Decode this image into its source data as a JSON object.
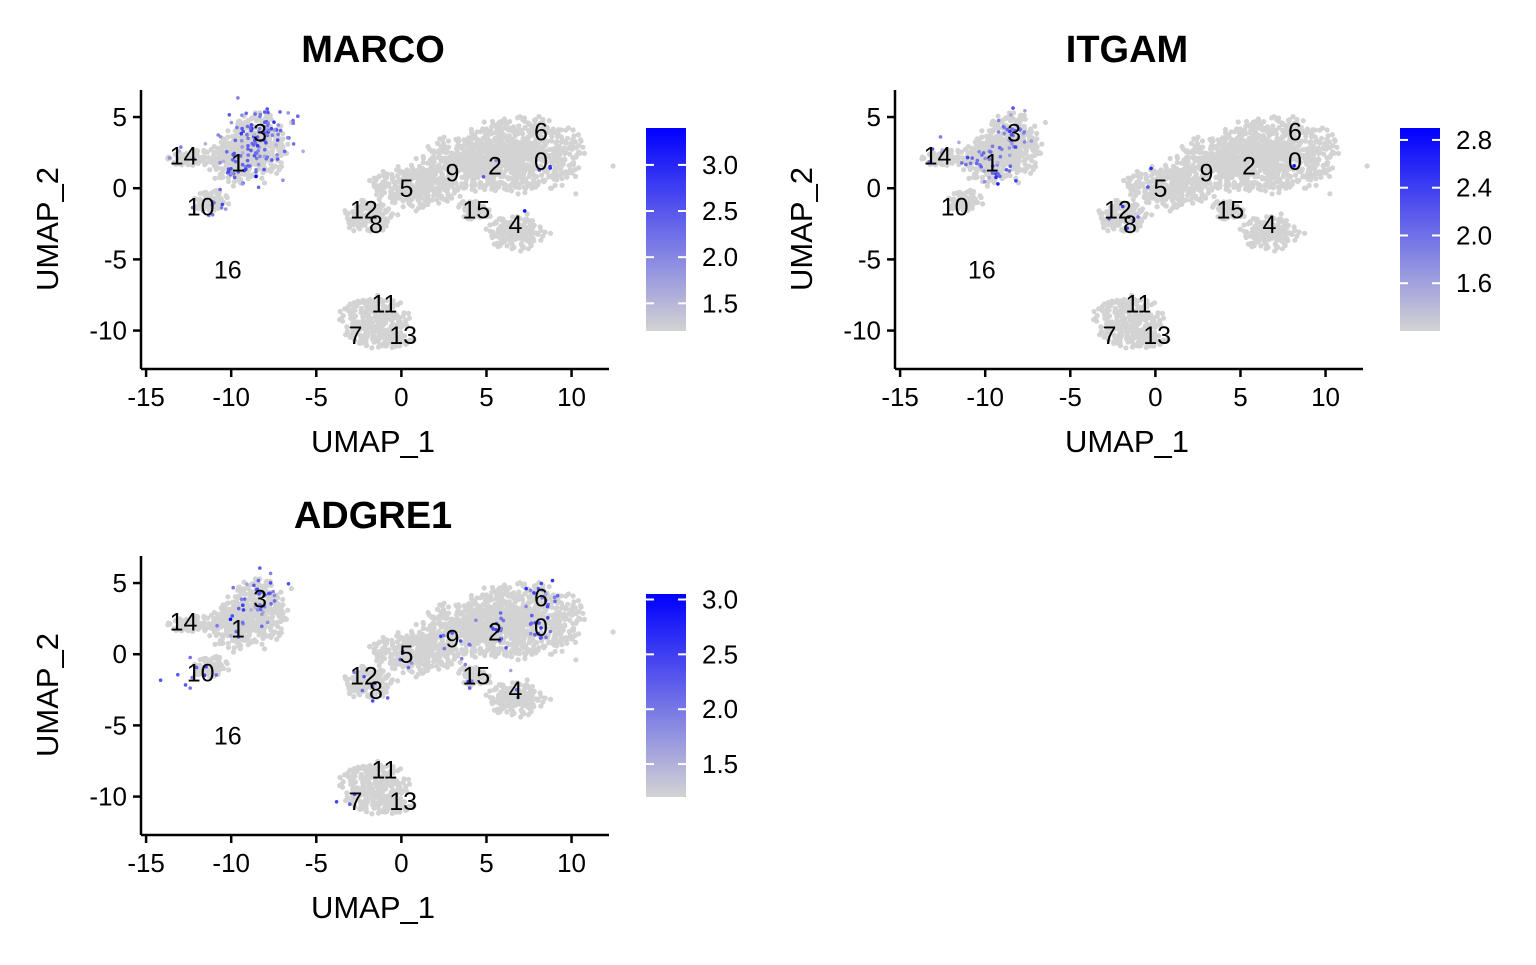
{
  "chart_data": [
    {
      "type": "scatter",
      "title": "MARCO",
      "xlabel": "UMAP_1",
      "ylabel": "UMAP_2",
      "xlim": [
        -15.3,
        12.2
      ],
      "ylim": [
        -12.7,
        6.9
      ],
      "xticks": [
        -15,
        -10,
        -5,
        0,
        5,
        10
      ],
      "yticks": [
        5,
        0,
        -5,
        -10
      ],
      "point_color_low": "#d3d3d3",
      "point_color_high": "#0000ff",
      "colorbar": {
        "min": 1.2,
        "max": 3.4,
        "ticks": [
          1.5,
          2.0,
          2.5,
          3.0
        ],
        "tick_labels": [
          "1.5",
          "2.0",
          "2.5",
          "3.0"
        ]
      },
      "cluster_labels": [
        {
          "label": "0",
          "x": 8.2,
          "y": 1.9
        },
        {
          "label": "1",
          "x": -9.6,
          "y": 1.8
        },
        {
          "label": "2",
          "x": 5.5,
          "y": 1.6
        },
        {
          "label": "3",
          "x": -8.3,
          "y": 3.9
        },
        {
          "label": "4",
          "x": 6.7,
          "y": -2.5
        },
        {
          "label": "5",
          "x": 0.3,
          "y": 0.0
        },
        {
          "label": "6",
          "x": 8.2,
          "y": 4.0
        },
        {
          "label": "7",
          "x": -2.7,
          "y": -10.3
        },
        {
          "label": "8",
          "x": -1.5,
          "y": -2.5
        },
        {
          "label": "9",
          "x": 3.0,
          "y": 1.1
        },
        {
          "label": "10",
          "x": -11.8,
          "y": -1.3
        },
        {
          "label": "11",
          "x": -1.0,
          "y": -8.1
        },
        {
          "label": "12",
          "x": -2.2,
          "y": -1.5
        },
        {
          "label": "13",
          "x": 0.1,
          "y": -10.3
        },
        {
          "label": "14",
          "x": -12.8,
          "y": 2.3
        },
        {
          "label": "15",
          "x": 4.4,
          "y": -1.5
        },
        {
          "label": "16",
          "x": -10.2,
          "y": -5.7
        }
      ],
      "expressing_clusters": [
        {
          "cluster": "3",
          "count": 85,
          "level": 0.5
        },
        {
          "cluster": "1",
          "count": 45,
          "level": 0.5
        },
        {
          "cluster": "14",
          "count": 6,
          "level": 0.35
        },
        {
          "cluster": "10",
          "count": 10,
          "level": 0.45
        },
        {
          "cluster": "0",
          "count": 3,
          "level": 0.6
        },
        {
          "cluster": "4",
          "count": 1,
          "level": 0.6
        },
        {
          "cluster": "2",
          "count": 2,
          "level": 0.6
        }
      ]
    },
    {
      "type": "scatter",
      "title": "ITGAM",
      "xlabel": "UMAP_1",
      "ylabel": "UMAP_2",
      "xlim": [
        -15.3,
        12.2
      ],
      "ylim": [
        -12.7,
        6.9
      ],
      "xticks": [
        -15,
        -10,
        -5,
        0,
        5,
        10
      ],
      "yticks": [
        5,
        0,
        -5,
        -10
      ],
      "point_color_low": "#d3d3d3",
      "point_color_high": "#0000ff",
      "colorbar": {
        "min": 1.2,
        "max": 2.9,
        "ticks": [
          1.6,
          2.0,
          2.4,
          2.8
        ],
        "tick_labels": [
          "1.6",
          "2.0",
          "2.4",
          "2.8"
        ]
      },
      "cluster_labels": [
        {
          "label": "0",
          "x": 8.2,
          "y": 1.9
        },
        {
          "label": "1",
          "x": -9.6,
          "y": 1.8
        },
        {
          "label": "2",
          "x": 5.5,
          "y": 1.6
        },
        {
          "label": "3",
          "x": -8.3,
          "y": 3.9
        },
        {
          "label": "4",
          "x": 6.7,
          "y": -2.5
        },
        {
          "label": "5",
          "x": 0.3,
          "y": 0.0
        },
        {
          "label": "6",
          "x": 8.2,
          "y": 4.0
        },
        {
          "label": "7",
          "x": -2.7,
          "y": -10.3
        },
        {
          "label": "8",
          "x": -1.5,
          "y": -2.5
        },
        {
          "label": "9",
          "x": 3.0,
          "y": 1.1
        },
        {
          "label": "10",
          "x": -11.8,
          "y": -1.3
        },
        {
          "label": "11",
          "x": -1.0,
          "y": -8.1
        },
        {
          "label": "12",
          "x": -2.2,
          "y": -1.5
        },
        {
          "label": "13",
          "x": 0.1,
          "y": -10.3
        },
        {
          "label": "14",
          "x": -12.8,
          "y": 2.3
        },
        {
          "label": "15",
          "x": 4.4,
          "y": -1.5
        },
        {
          "label": "16",
          "x": -10.2,
          "y": -5.7
        }
      ],
      "expressing_clusters": [
        {
          "cluster": "1",
          "count": 40,
          "level": 0.45
        },
        {
          "cluster": "3",
          "count": 30,
          "level": 0.4
        },
        {
          "cluster": "14",
          "count": 6,
          "level": 0.35
        },
        {
          "cluster": "12",
          "count": 5,
          "level": 0.7
        },
        {
          "cluster": "5",
          "count": 2,
          "level": 0.8
        },
        {
          "cluster": "0",
          "count": 1,
          "level": 0.6
        }
      ]
    },
    {
      "type": "scatter",
      "title": "ADGRE1",
      "xlabel": "UMAP_1",
      "ylabel": "UMAP_2",
      "xlim": [
        -15.3,
        12.2
      ],
      "ylim": [
        -12.7,
        6.9
      ],
      "xticks": [
        -15,
        -10,
        -5,
        0,
        5,
        10
      ],
      "yticks": [
        5,
        0,
        -5,
        -10
      ],
      "point_color_low": "#d3d3d3",
      "point_color_high": "#0000ff",
      "colorbar": {
        "min": 1.2,
        "max": 3.05,
        "ticks": [
          1.5,
          2.0,
          2.5,
          3.0
        ],
        "tick_labels": [
          "1.5",
          "2.0",
          "2.5",
          "3.0"
        ]
      },
      "cluster_labels": [
        {
          "label": "0",
          "x": 8.2,
          "y": 1.9
        },
        {
          "label": "1",
          "x": -9.6,
          "y": 1.8
        },
        {
          "label": "2",
          "x": 5.5,
          "y": 1.6
        },
        {
          "label": "3",
          "x": -8.3,
          "y": 3.9
        },
        {
          "label": "4",
          "x": 6.7,
          "y": -2.5
        },
        {
          "label": "5",
          "x": 0.3,
          "y": 0.0
        },
        {
          "label": "6",
          "x": 8.2,
          "y": 4.0
        },
        {
          "label": "7",
          "x": -2.7,
          "y": -10.3
        },
        {
          "label": "8",
          "x": -1.5,
          "y": -2.5
        },
        {
          "label": "9",
          "x": 3.0,
          "y": 1.1
        },
        {
          "label": "10",
          "x": -11.8,
          "y": -1.3
        },
        {
          "label": "11",
          "x": -1.0,
          "y": -8.1
        },
        {
          "label": "12",
          "x": -2.2,
          "y": -1.5
        },
        {
          "label": "13",
          "x": 0.1,
          "y": -10.3
        },
        {
          "label": "14",
          "x": -12.8,
          "y": 2.3
        },
        {
          "label": "15",
          "x": 4.4,
          "y": -1.5
        },
        {
          "label": "16",
          "x": -10.2,
          "y": -5.7
        }
      ],
      "expressing_clusters": [
        {
          "cluster": "3",
          "count": 35,
          "level": 0.45
        },
        {
          "cluster": "1",
          "count": 10,
          "level": 0.45
        },
        {
          "cluster": "10",
          "count": 12,
          "level": 0.5
        },
        {
          "cluster": "6",
          "count": 15,
          "level": 0.55
        },
        {
          "cluster": "0",
          "count": 15,
          "level": 0.55
        },
        {
          "cluster": "2",
          "count": 15,
          "level": 0.55
        },
        {
          "cluster": "9",
          "count": 8,
          "level": 0.5
        },
        {
          "cluster": "5",
          "count": 4,
          "level": 0.5
        },
        {
          "cluster": "15",
          "count": 4,
          "level": 0.55
        },
        {
          "cluster": "4",
          "count": 3,
          "level": 0.5
        },
        {
          "cluster": "12",
          "count": 3,
          "level": 0.5
        },
        {
          "cluster": "8",
          "count": 3,
          "level": 0.5
        },
        {
          "cluster": "7",
          "count": 3,
          "level": 0.55
        }
      ]
    }
  ]
}
